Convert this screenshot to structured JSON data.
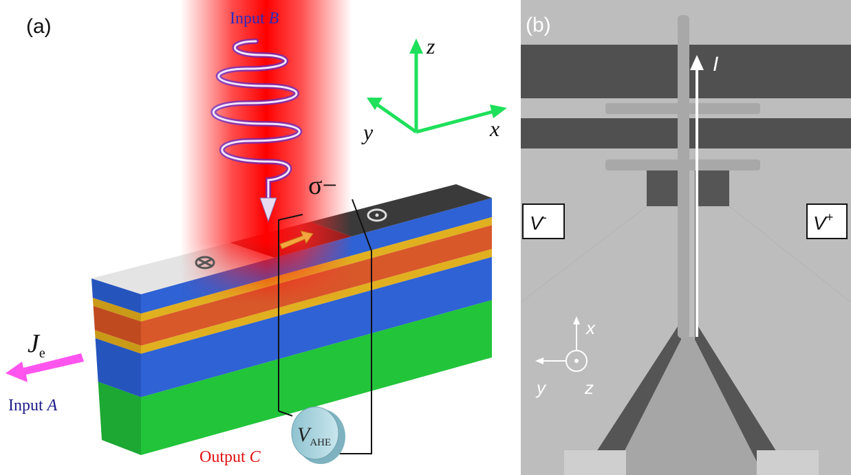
{
  "panel_a": {
    "label": "(a)",
    "input_b": {
      "text": "Input",
      "symbol": "B"
    },
    "polarization": "σ−",
    "axes": {
      "z": "z",
      "y": "y",
      "x": "x"
    },
    "current": {
      "symbol": "J",
      "subscript": "e"
    },
    "input_a": {
      "text": "Input",
      "symbol": "A"
    },
    "output_c": {
      "text": "Output",
      "symbol": "C"
    },
    "voltage": {
      "symbol": "V",
      "subscript": "AHE"
    }
  },
  "panel_b": {
    "label": "(b)",
    "current": "I",
    "v_minus": {
      "symbol": "V",
      "superscript": "-"
    },
    "v_plus": {
      "symbol": "V",
      "superscript": "+"
    },
    "axes": {
      "x": "x",
      "y": "y",
      "z": "z"
    }
  }
}
